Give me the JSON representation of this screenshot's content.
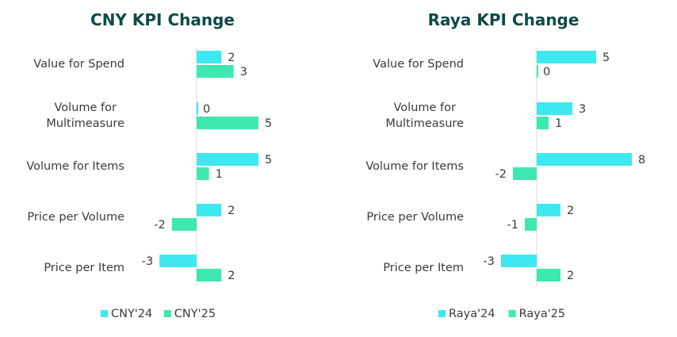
{
  "colors": {
    "series1": "#3ee8f0",
    "series2": "#3ee8b0"
  },
  "chart_data": [
    {
      "type": "bar",
      "orientation": "horizontal",
      "title": "CNY KPI Change",
      "categories": [
        "Value for Spend",
        "Volume for Multimeasure",
        "Volume for Items",
        "Price per Volume",
        "Price per Item"
      ],
      "category_lines": [
        [
          "Value for Spend"
        ],
        [
          "Volume for",
          "Multimeasure"
        ],
        [
          "Volume for Items"
        ],
        [
          "Price per Volume"
        ],
        [
          "Price per Item"
        ]
      ],
      "series": [
        {
          "name": "CNY'24",
          "values": [
            2,
            0,
            5,
            2,
            -3
          ]
        },
        {
          "name": "CNY'25",
          "values": [
            3,
            5,
            1,
            -2,
            2
          ]
        }
      ],
      "xlim": [
        -3,
        5
      ],
      "legend": "bottom",
      "grid": false
    },
    {
      "type": "bar",
      "orientation": "horizontal",
      "title": "Raya KPI Change",
      "categories": [
        "Value for Spend",
        "Volume for Multimeasure",
        "Volume for Items",
        "Price per Volume",
        "Price per Item"
      ],
      "category_lines": [
        [
          "Value for Spend"
        ],
        [
          "Volume for",
          "Multimeasure"
        ],
        [
          "Volume for Items"
        ],
        [
          "Price per Volume"
        ],
        [
          "Price per Item"
        ]
      ],
      "series": [
        {
          "name": "Raya'24",
          "values": [
            5,
            3,
            8,
            2,
            -3
          ]
        },
        {
          "name": "Raya'25",
          "values": [
            0,
            1,
            -2,
            -1,
            2
          ]
        }
      ],
      "xlim": [
        -3,
        8
      ],
      "legend": "bottom",
      "grid": false
    }
  ]
}
